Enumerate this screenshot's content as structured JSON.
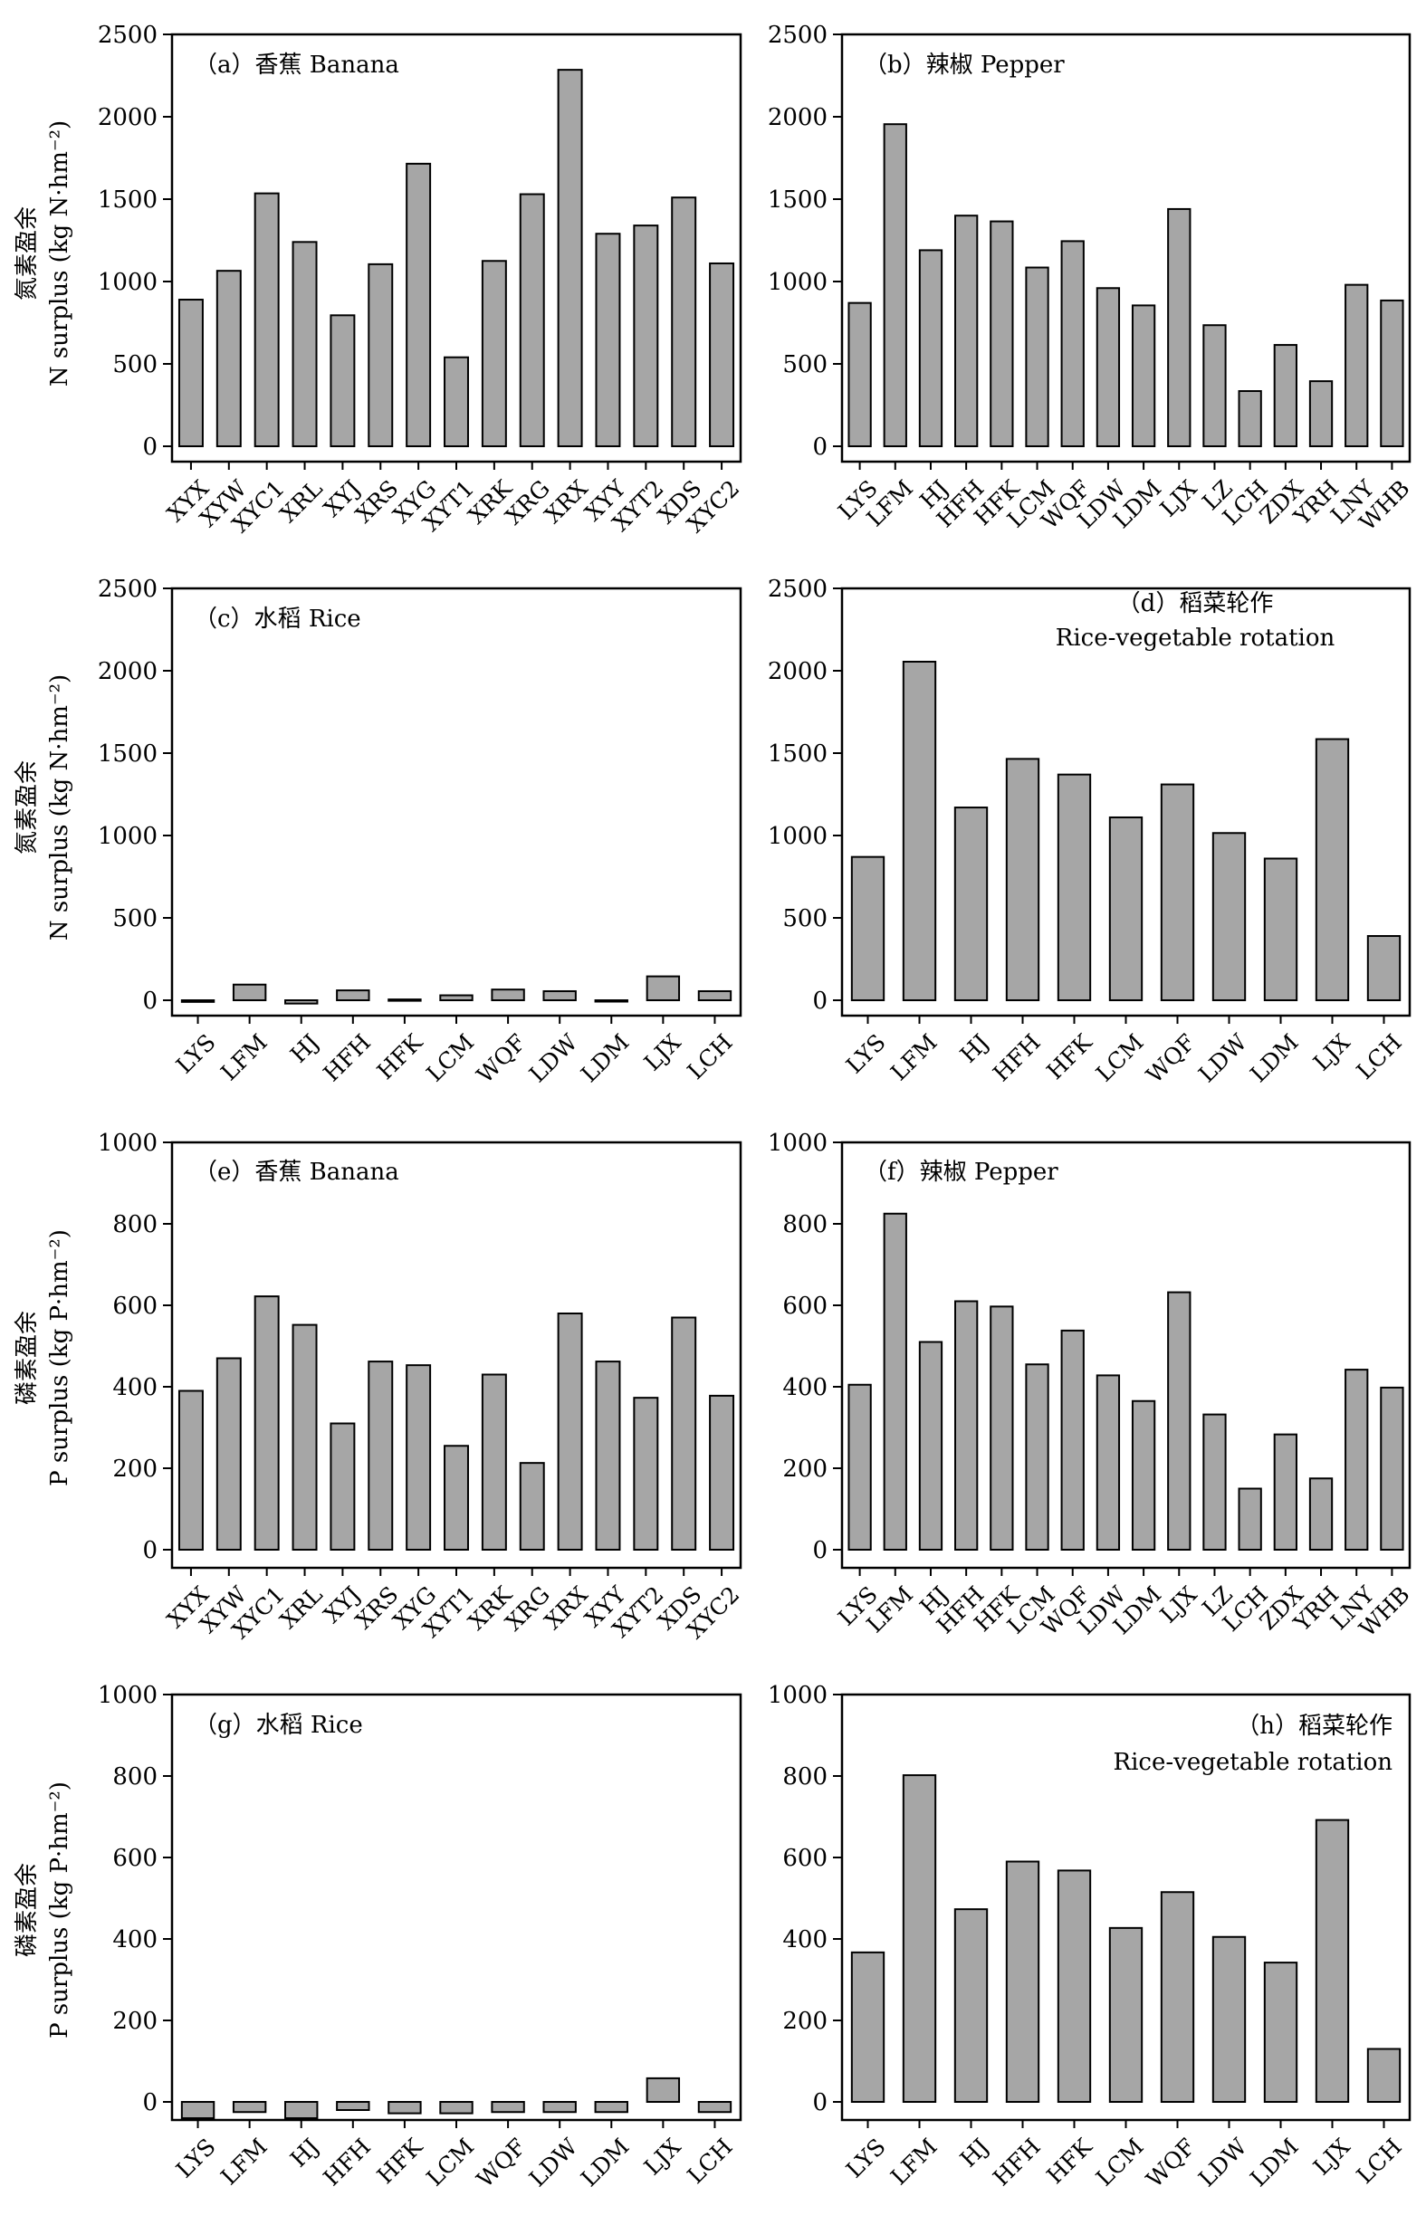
{
  "style": {
    "bar_fill": "#a6a6a6",
    "bar_stroke": "#000000",
    "background": "#ffffff"
  },
  "ylabel_n": {
    "cn": "氮素盈余",
    "en": "N surplus (kg N·hm⁻²)"
  },
  "ylabel_p": {
    "cn": "磷素盈余",
    "en": "P surplus (kg P·hm⁻²)"
  },
  "chart_data": [
    {
      "id": "a",
      "type": "bar",
      "title": "（a）香蕉 Banana",
      "ylabel": "氮素盈余 N surplus (kg N·hm⁻²)",
      "ylim": [
        0,
        2500
      ],
      "yticks": [
        0,
        500,
        1000,
        1500,
        2000,
        2500
      ],
      "label_rotation": -45,
      "categories": [
        "XYX",
        "XYW",
        "XYC1",
        "XRL",
        "XYJ",
        "XRS",
        "XYG",
        "XYT1",
        "XRK",
        "XRG",
        "XRX",
        "XYY",
        "XYT2",
        "XDS",
        "XYC2"
      ],
      "values": [
        890,
        1065,
        1535,
        1240,
        795,
        1105,
        1715,
        540,
        1125,
        1530,
        2285,
        1290,
        1340,
        1510,
        1110
      ]
    },
    {
      "id": "b",
      "type": "bar",
      "title": "（b）辣椒 Pepper",
      "ylabel": "",
      "ylim": [
        0,
        2500
      ],
      "yticks": [
        0,
        500,
        1000,
        1500,
        2000,
        2500
      ],
      "label_rotation": -45,
      "categories": [
        "LYS",
        "LFM",
        "HJ",
        "HFH",
        "HFK",
        "LCM",
        "WQF",
        "LDW",
        "LDM",
        "LJX",
        "LZ",
        "LCH",
        "ZDX",
        "YRH",
        "LNY",
        "WHB"
      ],
      "values": [
        870,
        1955,
        1190,
        1400,
        1365,
        1085,
        1245,
        960,
        855,
        1440,
        735,
        335,
        615,
        395,
        980,
        885
      ]
    },
    {
      "id": "c",
      "type": "bar",
      "title": "（c）水稻 Rice",
      "ylabel": "氮素盈余 N surplus (kg N·hm⁻²)",
      "ylim": [
        -10,
        2500
      ],
      "yticks": [
        0,
        500,
        1000,
        1500,
        2000,
        2500
      ],
      "label_rotation": -45,
      "categories": [
        "LYS",
        "LFM",
        "HJ",
        "HFH",
        "HFK",
        "LCM",
        "WQF",
        "LDW",
        "LDM",
        "LJX",
        "LCH"
      ],
      "values": [
        -10,
        95,
        -20,
        60,
        5,
        30,
        65,
        55,
        0,
        145,
        55
      ]
    },
    {
      "id": "d",
      "type": "bar",
      "title_lines": [
        "（d）稻菜轮作",
        "Rice-vegetable rotation"
      ],
      "ylabel": "",
      "ylim": [
        0,
        2500
      ],
      "yticks": [
        0,
        500,
        1000,
        1500,
        2000,
        2500
      ],
      "label_rotation": -45,
      "categories": [
        "LYS",
        "LFM",
        "HJ",
        "HFH",
        "HFK",
        "LCM",
        "WQF",
        "LDW",
        "LDM",
        "LJX",
        "LCH"
      ],
      "values": [
        870,
        2055,
        1170,
        1465,
        1370,
        1110,
        1310,
        1015,
        860,
        1585,
        390
      ]
    },
    {
      "id": "e",
      "type": "bar",
      "title": "（e）香蕉 Banana",
      "ylabel": "磷素盈余 P surplus (kg P·hm⁻²)",
      "ylim": [
        0,
        1000
      ],
      "yticks": [
        0,
        200,
        400,
        600,
        800,
        1000
      ],
      "label_rotation": -45,
      "categories": [
        "XYX",
        "XYW",
        "XYC1",
        "XRL",
        "XYJ",
        "XRS",
        "XYG",
        "XYT1",
        "XRK",
        "XRG",
        "XRX",
        "XYY",
        "XYT2",
        "XDS",
        "XYC2"
      ],
      "values": [
        390,
        470,
        622,
        552,
        310,
        462,
        453,
        255,
        430,
        213,
        580,
        462,
        373,
        570,
        378
      ]
    },
    {
      "id": "f",
      "type": "bar",
      "title": "（f）辣椒 Pepper",
      "ylabel": "",
      "ylim": [
        0,
        1000
      ],
      "yticks": [
        0,
        200,
        400,
        600,
        800,
        1000
      ],
      "label_rotation": -45,
      "categories": [
        "LYS",
        "LFM",
        "HJ",
        "HFH",
        "HFK",
        "LCM",
        "WQF",
        "LDW",
        "LDM",
        "LJX",
        "LZ",
        "LCH",
        "ZDX",
        "YRH",
        "LNY",
        "WHB"
      ],
      "values": [
        405,
        825,
        510,
        610,
        597,
        455,
        538,
        428,
        365,
        632,
        332,
        150,
        283,
        175,
        442,
        398
      ]
    },
    {
      "id": "g",
      "type": "bar",
      "title": "（g）水稻 Rice",
      "ylabel": "磷素盈余 P surplus (kg P·hm⁻²)",
      "ylim": [
        -50,
        1000
      ],
      "yticks": [
        0,
        200,
        400,
        600,
        800,
        1000
      ],
      "label_rotation": -45,
      "categories": [
        "LYS",
        "LFM",
        "HJ",
        "HFH",
        "HFK",
        "LCM",
        "WQF",
        "LDW",
        "LDM",
        "LJX",
        "LCH"
      ],
      "values": [
        -40,
        -25,
        -40,
        -20,
        -28,
        -28,
        -25,
        -25,
        -25,
        58,
        -25
      ]
    },
    {
      "id": "h",
      "type": "bar",
      "title_lines": [
        "（h）稻菜轮作",
        "Rice-vegetable rotation"
      ],
      "ylabel": "",
      "ylim": [
        -50,
        1000
      ],
      "yticks": [
        0,
        200,
        400,
        600,
        800,
        1000
      ],
      "label_rotation": -45,
      "categories": [
        "LYS",
        "LFM",
        "HJ",
        "HFH",
        "HFK",
        "LCM",
        "WQF",
        "LDW",
        "LDM",
        "LJX",
        "LCH"
      ],
      "values": [
        367,
        802,
        473,
        590,
        568,
        427,
        515,
        405,
        342,
        692,
        130
      ]
    }
  ]
}
